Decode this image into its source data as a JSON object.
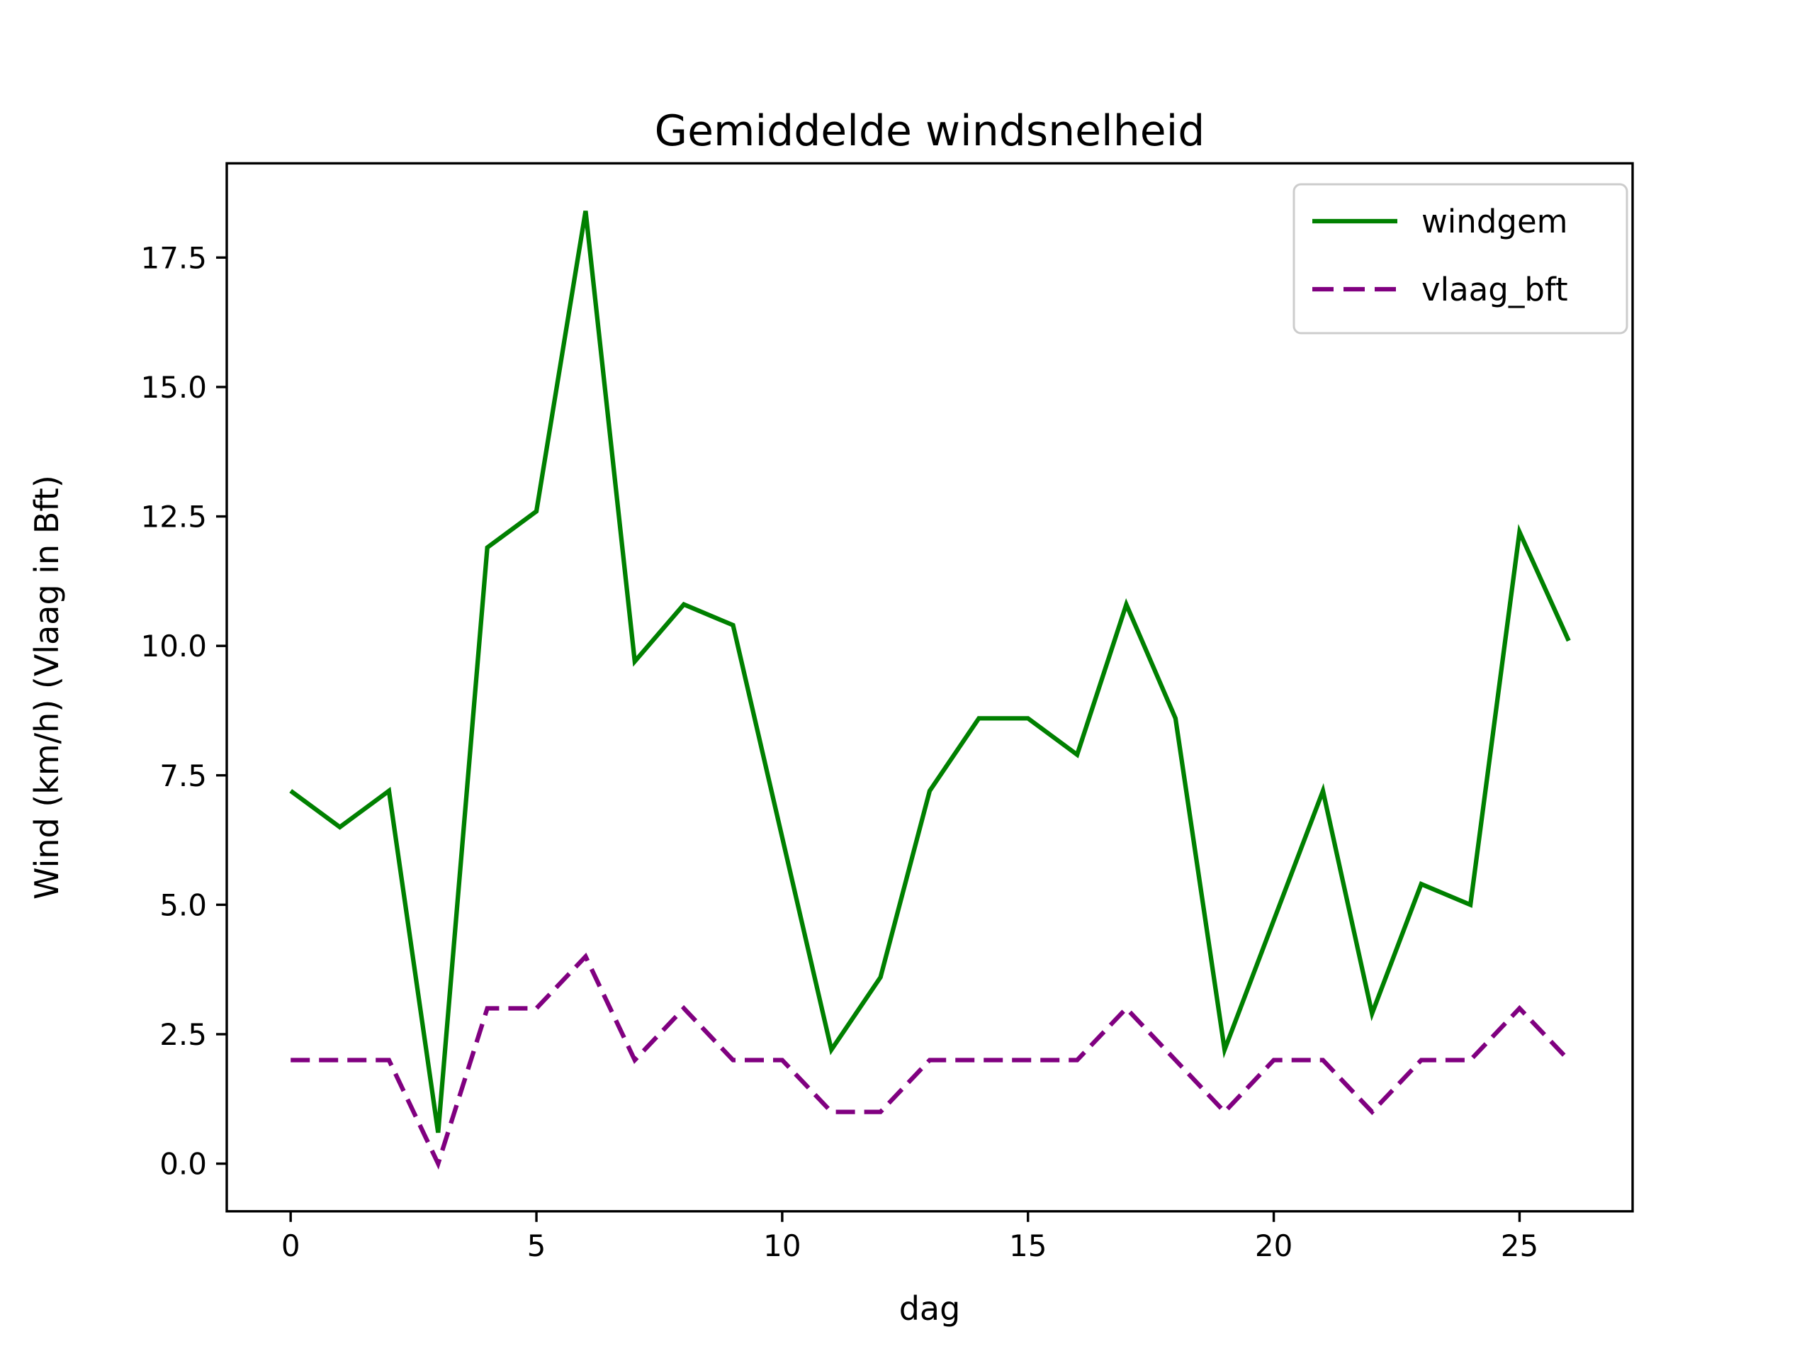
{
  "page": {
    "background": "#ffffff"
  },
  "chart_data": {
    "type": "line",
    "title": "Gemiddelde windsnelheid",
    "xlabel": "dag",
    "ylabel": "Wind (km/h) (Vlaag in Bft)",
    "x": [
      0,
      1,
      2,
      3,
      4,
      5,
      6,
      7,
      8,
      9,
      10,
      11,
      12,
      13,
      14,
      15,
      16,
      17,
      18,
      19,
      20,
      21,
      22,
      23,
      24,
      25,
      26
    ],
    "series": [
      {
        "name": "windgem",
        "color": "#008000",
        "style": "solid",
        "values": [
          7.2,
          6.5,
          7.2,
          0.6,
          11.9,
          12.6,
          18.4,
          9.7,
          10.8,
          10.4,
          6.3,
          2.2,
          3.6,
          7.2,
          8.6,
          8.6,
          7.9,
          10.8,
          8.6,
          2.2,
          4.7,
          7.2,
          2.9,
          5.4,
          5.0,
          12.2,
          10.1
        ]
      },
      {
        "name": "vlaag_bft",
        "color": "#800080",
        "style": "dashed",
        "values": [
          2,
          2,
          2,
          0,
          3,
          3,
          4,
          2,
          3,
          2,
          2,
          1,
          1,
          2,
          2,
          2,
          2,
          3,
          2,
          1,
          2,
          2,
          1,
          2,
          2,
          3,
          2
        ]
      }
    ],
    "xlim": [
      -1.3,
      27.3
    ],
    "ylim": [
      -0.92,
      19.32
    ],
    "xticks": {
      "values": [
        0,
        5,
        10,
        15,
        20,
        25
      ],
      "labels": [
        "0",
        "5",
        "10",
        "15",
        "20",
        "25"
      ]
    },
    "yticks": {
      "values": [
        0,
        2.5,
        5,
        7.5,
        10,
        12.5,
        15,
        17.5
      ],
      "labels": [
        "0.0",
        "2.5",
        "5.0",
        "7.5",
        "10.0",
        "12.5",
        "15.0",
        "17.5"
      ]
    },
    "grid": false,
    "legend": {
      "position": "upper right",
      "entries": [
        "windgem",
        "vlaag_bft"
      ]
    }
  }
}
